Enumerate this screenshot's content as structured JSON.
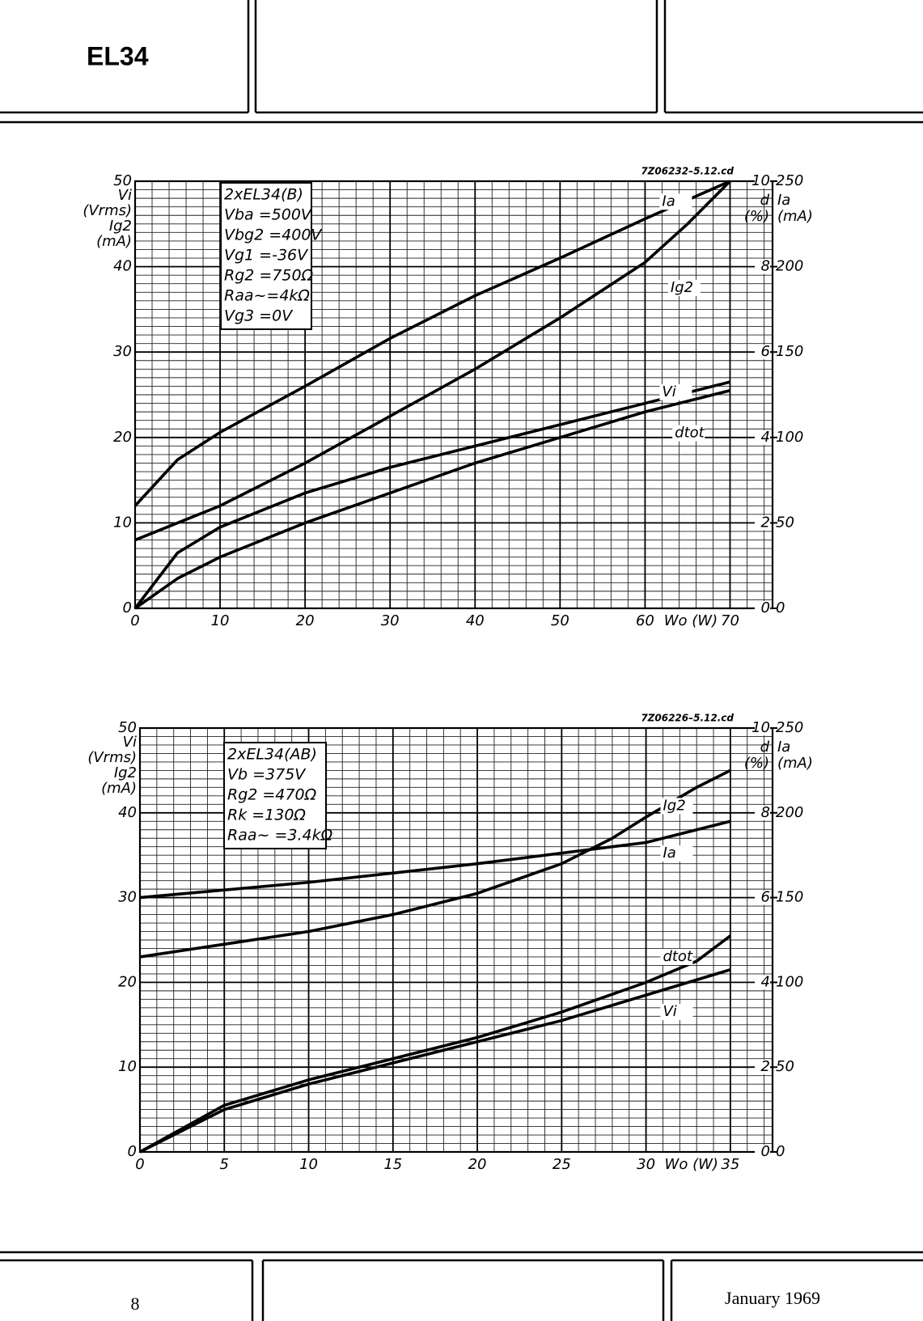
{
  "header": {
    "title": "EL34"
  },
  "footer": {
    "page": "8",
    "date": "January 1969"
  },
  "chart_data": [
    {
      "type": "line",
      "code": "7Z06232–5.12.cd",
      "annotation": [
        "2xEL34(B)",
        "Vba =500V",
        "Vbg2 =400V",
        "Vg1 =-36V",
        "Rg2 =750Ω",
        "Raa~=4kΩ",
        "Vg3 =0V"
      ],
      "x_label": "Wo (W)",
      "y_label": [
        "Vi",
        "(Vrms)",
        "Ig2",
        "(mA)"
      ],
      "y2_label": [
        "d",
        "(%)"
      ],
      "y3_label": [
        "Ia",
        "(mA)"
      ],
      "xlim": [
        0,
        75
      ],
      "xticks": [
        0,
        10,
        20,
        30,
        40,
        50,
        60,
        70
      ],
      "ylim": [
        0,
        50
      ],
      "yticks": [
        0,
        10,
        20,
        30,
        40,
        50
      ],
      "y2lim": [
        0,
        10
      ],
      "y2ticks": [
        0,
        2,
        4,
        6,
        8,
        10
      ],
      "y3lim": [
        0,
        250
      ],
      "y3ticks": [
        0,
        50,
        100,
        150,
        200,
        250
      ],
      "grid": true,
      "series": [
        {
          "name": "Ia",
          "color": "#000000",
          "axis": "y3",
          "x": [
            0,
            5,
            10,
            20,
            30,
            40,
            50,
            60,
            70
          ],
          "values": [
            60,
            87,
            103,
            130,
            158,
            183,
            205,
            228,
            250
          ]
        },
        {
          "name": "Ig2",
          "color": "#000000",
          "x": [
            0,
            10,
            20,
            30,
            40,
            50,
            60,
            65,
            70
          ],
          "values": [
            8,
            12,
            17,
            22.5,
            28,
            34,
            40.5,
            45,
            50
          ]
        },
        {
          "name": "Vi",
          "color": "#000000",
          "x": [
            0,
            5,
            10,
            20,
            30,
            40,
            50,
            60,
            70
          ],
          "values": [
            0,
            6.5,
            9.5,
            13.5,
            16.5,
            19,
            21.5,
            24,
            26.5
          ]
        },
        {
          "name": "dtot",
          "color": "#000000",
          "axis": "y2",
          "x": [
            0,
            5,
            10,
            20,
            30,
            40,
            50,
            60,
            70
          ],
          "values": [
            0,
            0.7,
            1.2,
            2.0,
            2.7,
            3.4,
            4.0,
            4.6,
            5.1
          ]
        }
      ]
    },
    {
      "type": "line",
      "code": "7Z06226–5.12.cd",
      "annotation": [
        "2xEL34(AB)",
        "Vb =375V",
        "Rg2 =470Ω",
        "Rk =130Ω",
        "Raa~ =3.4kΩ"
      ],
      "x_label": "Wo (W)",
      "y_label": [
        "Vi",
        "(Vrms)",
        "Ig2",
        "(mA)"
      ],
      "y2_label": [
        "d",
        "(%)"
      ],
      "y3_label": [
        "Ia",
        "(mA)"
      ],
      "xlim": [
        0,
        37.5
      ],
      "xticks": [
        0,
        5,
        10,
        15,
        20,
        25,
        30,
        35
      ],
      "ylim": [
        0,
        50
      ],
      "yticks": [
        0,
        10,
        20,
        30,
        40,
        50
      ],
      "y2lim": [
        0,
        10
      ],
      "y2ticks": [
        0,
        2,
        4,
        6,
        8,
        10
      ],
      "y3lim": [
        0,
        250
      ],
      "y3ticks": [
        0,
        50,
        100,
        150,
        200,
        250
      ],
      "grid": true,
      "series": [
        {
          "name": "Ia",
          "color": "#000000",
          "axis": "y3",
          "x": [
            0,
            10,
            20,
            30,
            35
          ],
          "values": [
            150,
            159,
            170,
            182.5,
            195
          ]
        },
        {
          "name": "Ig2",
          "color": "#000000",
          "x": [
            0,
            10,
            15,
            20,
            25,
            28,
            30,
            33,
            35
          ],
          "values": [
            23,
            26,
            28,
            30.5,
            34,
            37,
            39.5,
            43,
            45
          ]
        },
        {
          "name": "dtot",
          "color": "#000000",
          "axis": "y2",
          "x": [
            0,
            5,
            10,
            15,
            20,
            25,
            30,
            33,
            35
          ],
          "values": [
            0,
            1.1,
            1.7,
            2.2,
            2.7,
            3.3,
            4.0,
            4.5,
            5.1
          ]
        },
        {
          "name": "Vi",
          "color": "#000000",
          "x": [
            0,
            5,
            10,
            15,
            20,
            25,
            30,
            35
          ],
          "values": [
            0,
            5,
            8,
            10.5,
            13,
            15.5,
            18.5,
            21.5
          ]
        }
      ]
    }
  ]
}
